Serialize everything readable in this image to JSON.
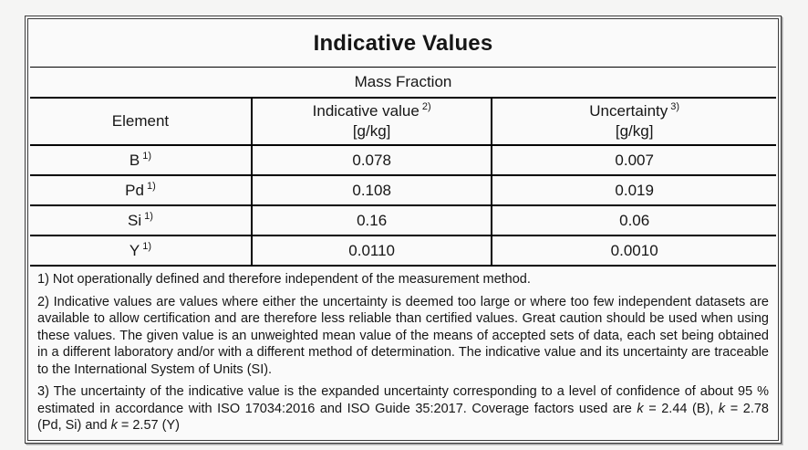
{
  "table": {
    "title": "Indicative Values",
    "subtitle": "Mass Fraction",
    "columns": [
      {
        "label": "Element",
        "sup": "",
        "unit": ""
      },
      {
        "label": "Indicative value",
        "sup": "2)",
        "unit": "[g/kg]"
      },
      {
        "label": "Uncertainty",
        "sup": "3)",
        "unit": "[g/kg]"
      }
    ],
    "rows": [
      {
        "element": "B",
        "element_sup": "1)",
        "indicative_value": "0.078",
        "uncertainty": "0.007"
      },
      {
        "element": "Pd",
        "element_sup": "1)",
        "indicative_value": "0.108",
        "uncertainty": "0.019"
      },
      {
        "element": "Si",
        "element_sup": "1)",
        "indicative_value": "0.16",
        "uncertainty": "0.06"
      },
      {
        "element": "Y",
        "element_sup": "1)",
        "indicative_value": "0.0110",
        "uncertainty": "0.0010"
      }
    ]
  },
  "footnotes": {
    "note1": "1) Not operationally defined and therefore independent of the measurement method.",
    "note2": "2) Indicative values are values where either the uncertainty is deemed too large or where too few independent datasets are available to allow certification and are therefore less reliable than certified values. Great caution should be used when using these values. The given value is an unweighted mean value of the means of accepted sets of data, each set being obtained in a different laboratory and/or with a different method of determination. The indicative value and its uncertainty are traceable to the International System of Units (SI).",
    "note3": {
      "parts": [
        "3) The uncertainty of the indicative value is the expanded uncertainty corresponding to a level of confidence of about 95 % estimated in accordance with ISO 17034:2016 and ISO Guide 35:2017. Coverage factors used are ",
        "k",
        " = 2.44 (B), ",
        "k",
        " = 2.78 (Pd, Si) and ",
        "k",
        " = 2.57 (Y)"
      ]
    }
  },
  "colors": {
    "page_bg": "#f5f5f4",
    "cell_bg": "#fafafa",
    "border": "#000000",
    "frame": "#3c3c3c"
  }
}
